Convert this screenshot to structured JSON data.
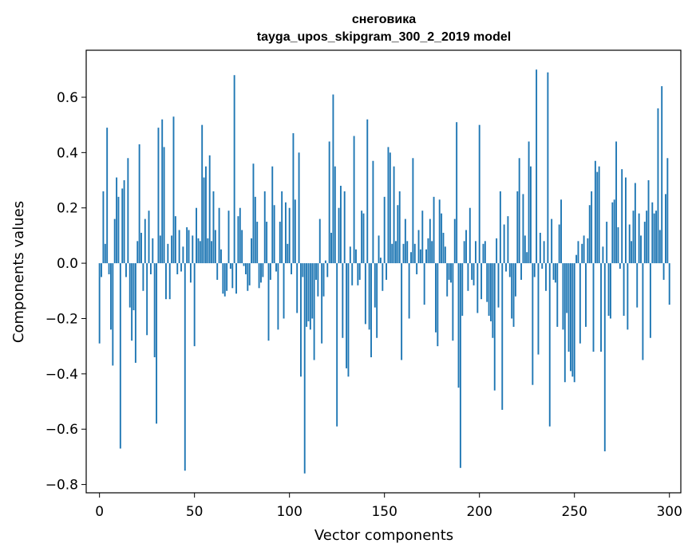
{
  "chart_data": {
    "type": "bar",
    "title": "снеговика",
    "subtitle": "tayga_upos_skipgram_300_2_2019 model",
    "xlabel": "Vector components",
    "ylabel": "Components values",
    "xlim": [
      -7,
      306
    ],
    "ylim": [
      -0.83,
      0.77
    ],
    "xticks": [
      0,
      50,
      100,
      150,
      200,
      250,
      300
    ],
    "xtick_labels": [
      "0",
      "50",
      "100",
      "150",
      "200",
      "250",
      "300"
    ],
    "yticks": [
      -0.8,
      -0.6,
      -0.4,
      -0.2,
      0.0,
      0.2,
      0.4,
      0.6
    ],
    "ytick_labels": [
      "−0.8",
      "−0.6",
      "−0.4",
      "−0.2",
      "0.0",
      "0.2",
      "0.4",
      "0.6"
    ],
    "bar_color": "#1f77b4",
    "grid": false,
    "values": [
      -0.29,
      -0.05,
      0.26,
      0.07,
      0.49,
      -0.04,
      -0.24,
      -0.37,
      0.16,
      0.31,
      0.24,
      -0.67,
      0.27,
      0.3,
      -0.05,
      0.38,
      -0.16,
      -0.28,
      -0.17,
      -0.36,
      0.08,
      0.43,
      0.11,
      -0.1,
      0.16,
      -0.26,
      0.19,
      -0.04,
      0.09,
      -0.34,
      -0.58,
      0.49,
      0.1,
      0.52,
      0.42,
      -0.13,
      0.07,
      -0.13,
      0.1,
      0.53,
      0.17,
      -0.04,
      0.12,
      -0.03,
      0.06,
      -0.75,
      0.13,
      0.12,
      -0.07,
      0.1,
      -0.3,
      0.2,
      0.09,
      0.08,
      0.5,
      0.31,
      0.35,
      0.09,
      0.39,
      0.08,
      0.26,
      0.12,
      -0.06,
      0.2,
      0.05,
      -0.11,
      -0.12,
      -0.1,
      0.19,
      -0.02,
      -0.09,
      0.68,
      -0.11,
      0.17,
      0.2,
      0.12,
      -0.01,
      -0.04,
      -0.1,
      -0.08,
      0.09,
      0.36,
      0.24,
      0.15,
      -0.09,
      -0.07,
      -0.05,
      0.26,
      0.15,
      -0.28,
      -0.06,
      0.35,
      0.21,
      -0.03,
      -0.24,
      0.15,
      0.26,
      -0.2,
      0.22,
      0.07,
      0.2,
      -0.04,
      0.47,
      0.23,
      -0.18,
      0.4,
      -0.41,
      -0.05,
      -0.76,
      -0.23,
      -0.21,
      -0.24,
      -0.2,
      -0.35,
      -0.06,
      -0.12,
      0.16,
      -0.29,
      -0.12,
      0.01,
      -0.05,
      0.44,
      0.11,
      0.61,
      0.35,
      -0.59,
      0.2,
      0.28,
      -0.27,
      0.26,
      -0.38,
      -0.41,
      0.06,
      -0.08,
      0.46,
      0.05,
      -0.08,
      -0.06,
      0.19,
      0.18,
      -0.22,
      0.52,
      -0.24,
      -0.34,
      0.37,
      -0.16,
      -0.27,
      0.1,
      0.02,
      -0.1,
      0.24,
      -0.06,
      0.42,
      0.4,
      0.07,
      0.35,
      0.08,
      0.21,
      0.26,
      -0.35,
      0.07,
      0.16,
      0.08,
      -0.2,
      0.04,
      0.38,
      0.07,
      -0.04,
      0.12,
      0.05,
      0.19,
      -0.15,
      0.05,
      0.09,
      0.16,
      0.08,
      0.24,
      -0.25,
      -0.3,
      0.23,
      0.18,
      0.11,
      0.06,
      -0.12,
      -0.06,
      -0.07,
      -0.28,
      0.16,
      0.51,
      -0.45,
      -0.74,
      -0.19,
      0.08,
      0.12,
      -0.1,
      0.2,
      -0.06,
      -0.08,
      0.08,
      -0.18,
      0.5,
      -0.13,
      0.07,
      0.08,
      -0.14,
      -0.19,
      -0.21,
      -0.27,
      -0.46,
      0.09,
      -0.16,
      0.26,
      -0.53,
      0.14,
      -0.03,
      0.17,
      -0.05,
      -0.2,
      -0.23,
      -0.12,
      0.26,
      0.38,
      -0.06,
      0.25,
      0.1,
      0.04,
      0.44,
      0.35,
      -0.44,
      -0.05,
      0.7,
      -0.33,
      0.11,
      -0.02,
      0.08,
      -0.1,
      0.69,
      -0.59,
      0.16,
      -0.06,
      -0.07,
      -0.23,
      0.14,
      0.23,
      -0.24,
      -0.43,
      -0.18,
      -0.32,
      -0.39,
      -0.41,
      -0.43,
      0.03,
      0.08,
      -0.29,
      0.07,
      0.1,
      -0.23,
      0.09,
      0.21,
      0.26,
      -0.32,
      0.37,
      0.33,
      0.35,
      -0.32,
      0.06,
      -0.68,
      0.15,
      -0.19,
      -0.2,
      0.22,
      0.23,
      0.44,
      0.13,
      -0.02,
      0.34,
      -0.19,
      0.31,
      -0.24,
      0.14,
      0.08,
      0.19,
      0.29,
      -0.16,
      0.18,
      0.1,
      -0.35,
      0.15,
      0.19,
      0.3,
      -0.27,
      0.22,
      0.18,
      0.19,
      0.56,
      0.12,
      0.64,
      -0.06,
      0.25,
      0.38,
      -0.15
    ]
  }
}
